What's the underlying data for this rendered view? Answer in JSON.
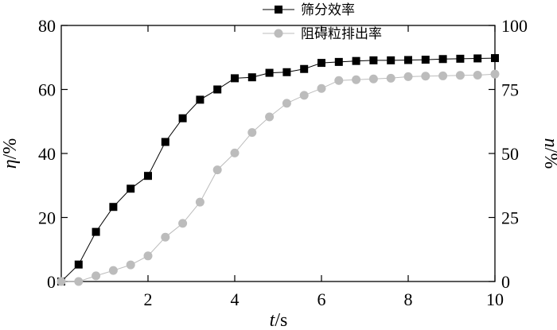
{
  "chart_data": {
    "type": "line",
    "x_axis": {
      "label_var": "t",
      "label_unit": "/s",
      "range": [
        0,
        10
      ],
      "ticks": [
        2,
        4,
        6,
        8,
        10
      ],
      "zero_label": "0"
    },
    "y_left": {
      "label_var": "η",
      "label_unit": "/%",
      "range": [
        0,
        80
      ],
      "ticks": [
        0,
        20,
        40,
        60,
        80
      ]
    },
    "y_right": {
      "label_var": "n",
      "label_unit": "/%",
      "range": [
        0,
        100
      ],
      "ticks": [
        0,
        25,
        50,
        75,
        100
      ]
    },
    "grid": false,
    "legend_position": "top-center",
    "series": [
      {
        "name": "筛分效率",
        "axis": "left",
        "marker": "square",
        "color": "#000000",
        "x": [
          0,
          0.4,
          0.8,
          1.2,
          1.6,
          2.0,
          2.4,
          2.8,
          3.2,
          3.6,
          4.0,
          4.4,
          4.8,
          5.2,
          5.6,
          6.0,
          6.4,
          6.8,
          7.2,
          7.6,
          8.0,
          8.4,
          8.8,
          9.2,
          9.6,
          10.0
        ],
        "y": [
          0,
          5.3,
          15.5,
          23.3,
          29,
          33,
          43.6,
          51,
          56.8,
          60,
          63.5,
          63.8,
          65.2,
          65.4,
          66.4,
          68.3,
          68.6,
          68.9,
          69.1,
          69.1,
          69.2,
          69.3,
          69.5,
          69.6,
          69.7,
          69.8
        ]
      },
      {
        "name": "阻碍粒排出率",
        "axis": "right",
        "marker": "circle",
        "color": "#bcbcbc",
        "x": [
          0,
          0.4,
          0.8,
          1.2,
          1.6,
          2.0,
          2.4,
          2.8,
          3.2,
          3.6,
          4.0,
          4.4,
          4.8,
          5.2,
          5.6,
          6.0,
          6.4,
          6.8,
          7.2,
          7.6,
          8.0,
          8.4,
          8.8,
          9.2,
          9.6,
          10.0
        ],
        "y": [
          0,
          0,
          2.2,
          4.3,
          6.5,
          10,
          17.3,
          22.7,
          31,
          43.6,
          50.2,
          58.2,
          64.3,
          69.6,
          72.7,
          75.4,
          78.5,
          78.8,
          79.1,
          79.4,
          80,
          80.2,
          80.3,
          80.5,
          80.6,
          81
        ]
      }
    ]
  }
}
